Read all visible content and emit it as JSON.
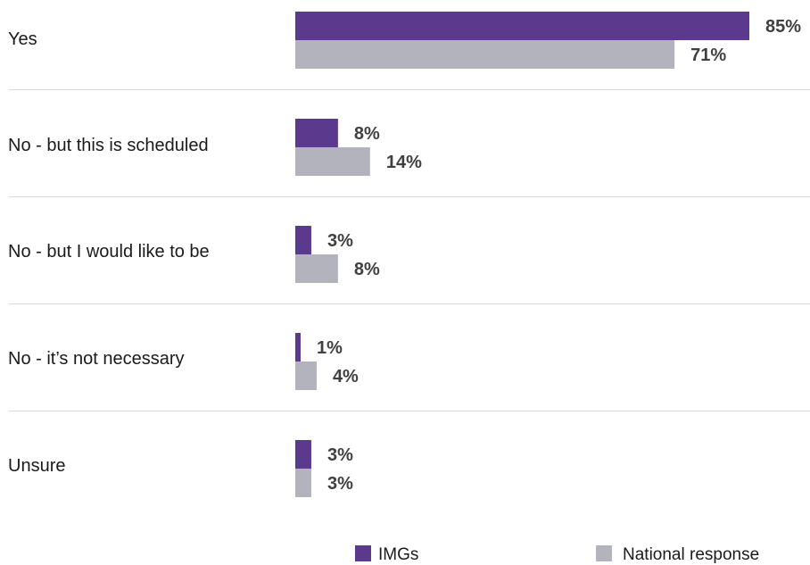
{
  "chart_data": {
    "type": "bar",
    "orientation": "horizontal",
    "categories": [
      "Yes",
      "No - but this is scheduled",
      "No - but I would like to be",
      "No - it’s not necessary",
      "Unsure"
    ],
    "series": [
      {
        "name": "IMGs",
        "color": "#5b3a8e",
        "values": [
          85,
          8,
          3,
          1,
          3
        ],
        "labels": [
          "85%",
          "8%",
          "3%",
          "1%",
          "3%"
        ]
      },
      {
        "name": "National response",
        "color": "#b3b3bd",
        "values": [
          71,
          14,
          8,
          4,
          3
        ],
        "labels": [
          "71%",
          "14%",
          "8%",
          "4%",
          "3%"
        ]
      }
    ],
    "xlim": [
      0,
      85
    ],
    "unit": "%",
    "grid": false,
    "category_dividers": true,
    "legend_position": "bottom"
  }
}
